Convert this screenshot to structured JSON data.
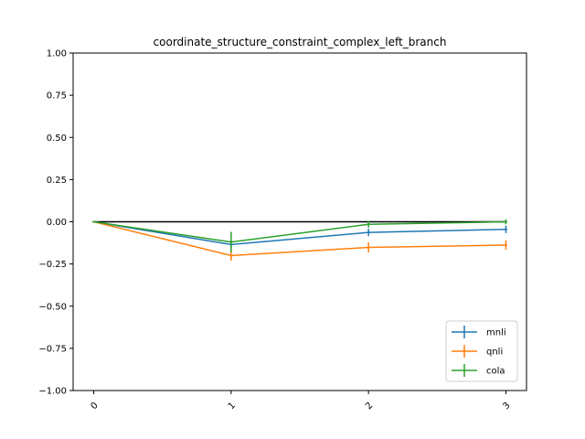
{
  "chart_data": {
    "type": "line",
    "title": "coordinate_structure_constraint_complex_left_branch",
    "xlabel": "",
    "ylabel": "",
    "x": [
      0,
      1,
      2,
      3
    ],
    "x_tick_labels": [
      "0",
      "1",
      "2",
      "3"
    ],
    "ylim": [
      -1.0,
      1.0
    ],
    "y_ticks": [
      1.0,
      0.75,
      0.5,
      0.25,
      0.0,
      -0.25,
      -0.5,
      -0.75,
      -1.0
    ],
    "y_tick_labels": [
      "1.00",
      "0.75",
      "0.50",
      "0.25",
      "0.00",
      "−0.25",
      "−0.50",
      "−0.75",
      "−1.00"
    ],
    "grid": false,
    "legend_position": "lower-right",
    "reference_line": {
      "y": 0,
      "color": "#000000"
    },
    "series": [
      {
        "name": "mnli",
        "color": "#1f77b4",
        "values": [
          0.0,
          -0.135,
          -0.063,
          -0.045
        ],
        "errors": [
          0.0,
          0.025,
          0.022,
          0.022
        ]
      },
      {
        "name": "qnli",
        "color": "#ff7f0e",
        "values": [
          0.0,
          -0.2,
          -0.152,
          -0.138
        ],
        "errors": [
          0.0,
          0.03,
          0.03,
          0.028
        ]
      },
      {
        "name": "cola",
        "color": "#2ca02c",
        "values": [
          0.0,
          -0.12,
          -0.015,
          0.0
        ],
        "errors": [
          0.0,
          0.06,
          0.02,
          0.015
        ]
      }
    ]
  }
}
